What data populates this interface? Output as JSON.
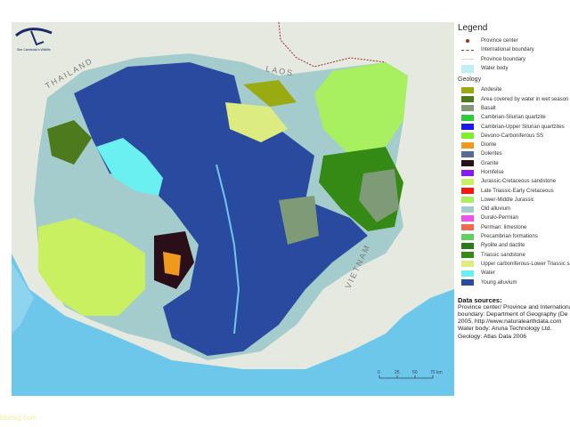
{
  "logo": {
    "text": "See Cambodia's Wildlife"
  },
  "map": {
    "country_labels": [
      "THAILAND",
      "LAOS",
      "VIETNAM"
    ],
    "scale_bar": {
      "ticks": [
        "0",
        "25",
        "50",
        "75 km"
      ]
    }
  },
  "legend": {
    "title": "Legend",
    "symbols": [
      {
        "label": "Province center",
        "color": "#b22a1a",
        "icon": "dot"
      },
      {
        "label": "International boundary",
        "color": "#9b2d2d",
        "icon": "dashed-line"
      },
      {
        "label": "Province boundary",
        "color": "#d6d6d6",
        "icon": "line"
      },
      {
        "label": "Water body",
        "color": "#bfeef5",
        "icon": "swatch"
      }
    ],
    "geology_title": "Geology",
    "geology": [
      {
        "label": "Andesite",
        "color": "#9aab12"
      },
      {
        "label": "Area covered by water in wet season",
        "color": "#4e7a1e"
      },
      {
        "label": "Basalt",
        "color": "#7e9a76"
      },
      {
        "label": "Cambrian-Silurian quartzite",
        "color": "#2ecb3a"
      },
      {
        "label": "Cambrian-Upper Silurian quartzites",
        "color": "#1a1af0"
      },
      {
        "label": "Devono-Carboniferous SS",
        "color": "#7ef02a"
      },
      {
        "label": "Diorite",
        "color": "#ef9a1e"
      },
      {
        "label": "Dolerites",
        "color": "#5a6a90"
      },
      {
        "label": "Granite",
        "color": "#2a0f18"
      },
      {
        "label": "Hornfelse",
        "color": "#8a18f0"
      },
      {
        "label": "Jurassic-Cretaceous sandstone",
        "color": "#c8f060"
      },
      {
        "label": "Late Triassic-Early Cretaceous",
        "color": "#f01a10"
      },
      {
        "label": "Lower-Middle Jurassic",
        "color": "#a8f060"
      },
      {
        "label": "Old alluvium",
        "color": "#a4cccc"
      },
      {
        "label": "Duralo-Permian",
        "color": "#f050f0"
      },
      {
        "label": "Permian: limestone",
        "color": "#f06a50"
      },
      {
        "label": "Precambrian formations",
        "color": "#60d060"
      },
      {
        "label": "Ryolite and dactite",
        "color": "#2a7a1a"
      },
      {
        "label": "Triassic sandstone",
        "color": "#348a14"
      },
      {
        "label": "Upper carboniferous-Lower Triassic sa",
        "color": "#dcec80"
      },
      {
        "label": "Water",
        "color": "#6af0f0"
      },
      {
        "label": "Young alluvium",
        "color": "#2a4aa0"
      }
    ]
  },
  "data_sources": {
    "title": "Data sources:",
    "lines": [
      "Province center/ Province and International",
      "boundary: Department of Geography (De",
      "2005, http://www.naturalearthdata.com",
      "Water body: Aruna Technology Ltd.",
      "Geology: Atlas Data 2006"
    ]
  },
  "watermark": "bloosg.com"
}
